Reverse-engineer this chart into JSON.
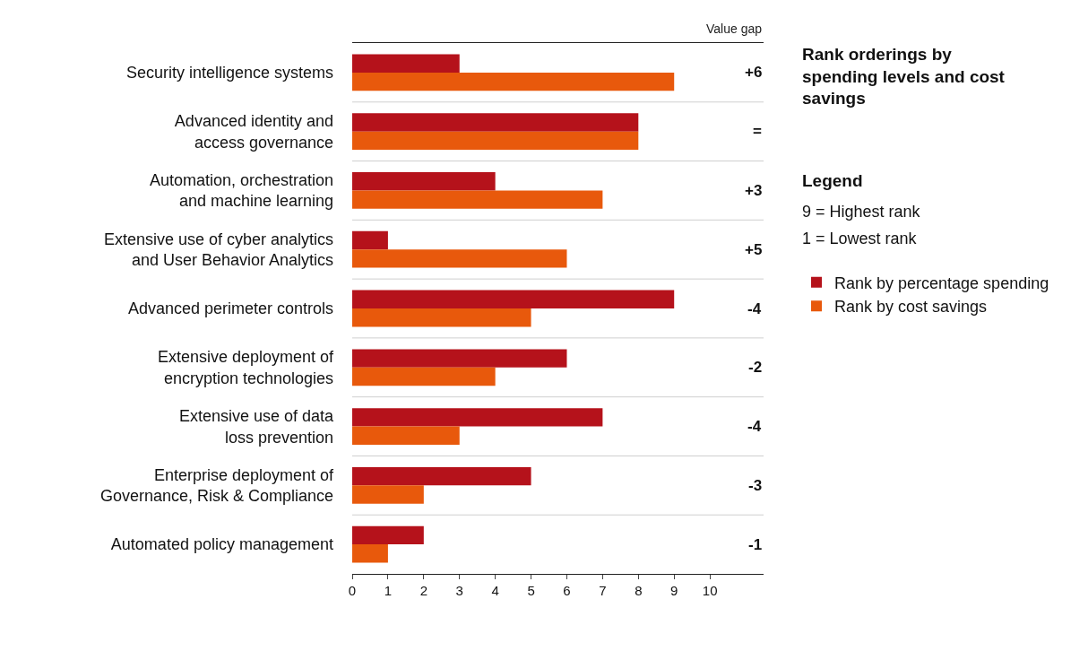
{
  "chart_data": {
    "type": "bar",
    "orientation": "horizontal",
    "categories": [
      "Security intelligence systems",
      "Advanced identity and\naccess governance",
      "Automation, orchestration\nand machine learning",
      "Extensive use of cyber analytics\nand User Behavior Analytics",
      "Advanced perimeter controls",
      "Extensive deployment of\nencryption technologies",
      "Extensive use of data\nloss prevention",
      "Enterprise deployment of\nGovernance, Risk & Compliance",
      "Automated policy management"
    ],
    "series": [
      {
        "name": "Rank by percentage spending",
        "color": "#b5121b",
        "values": [
          3,
          8,
          4,
          1,
          9,
          6,
          7,
          5,
          2
        ]
      },
      {
        "name": "Rank by cost savings",
        "color": "#e8590c",
        "values": [
          9,
          8,
          7,
          6,
          5,
          4,
          3,
          2,
          1
        ]
      }
    ],
    "xlim": [
      0,
      11.5
    ],
    "xticks": [
      0,
      1,
      2,
      3,
      4,
      5,
      6,
      7,
      8,
      9,
      10
    ],
    "grid": "y",
    "legend": "right",
    "legend_title": "Rank orderings by spending levels and cost savings",
    "annotations": [
      "Value gap",
      "+6",
      "=",
      "+3",
      "+5",
      "-4",
      "-2",
      "-4",
      "-3",
      "-1",
      "Legend",
      "9 = Highest rank",
      "1 = Lowest rank"
    ]
  }
}
